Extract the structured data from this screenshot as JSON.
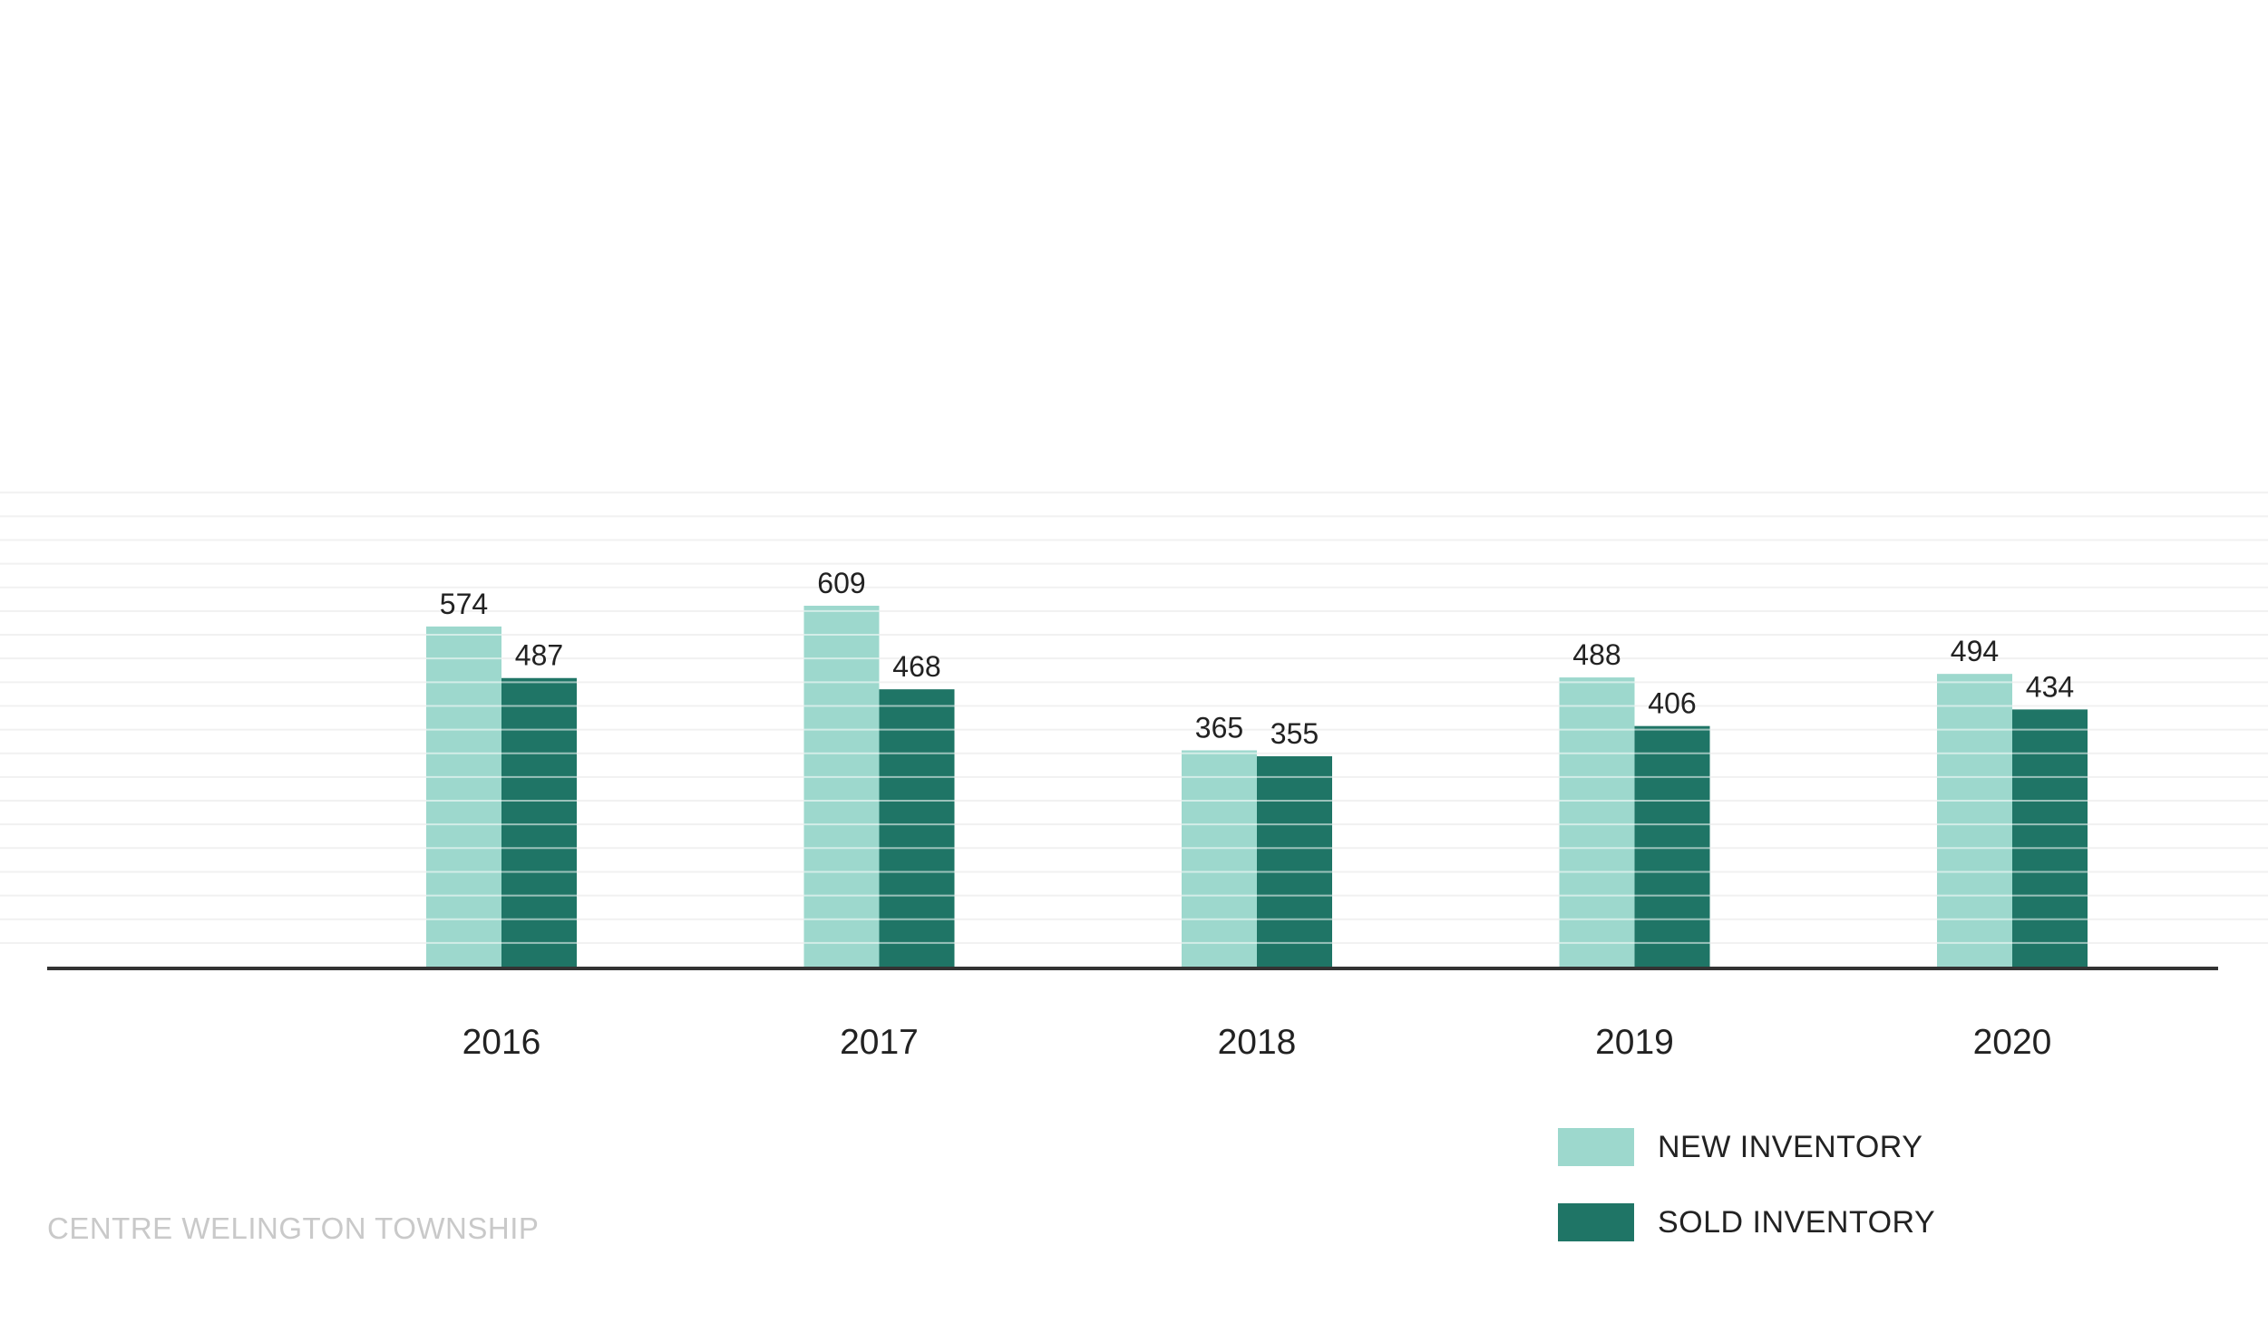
{
  "chart_data": {
    "type": "bar",
    "categories": [
      "2016",
      "2017",
      "2018",
      "2019",
      "2020"
    ],
    "series": [
      {
        "name": "NEW INVENTORY",
        "values": [
          574,
          609,
          365,
          488,
          494
        ],
        "color": "#9dd8cd"
      },
      {
        "name": "SOLD INVENTORY",
        "values": [
          487,
          468,
          355,
          406,
          434
        ],
        "color": "#1f7566"
      }
    ],
    "title": "",
    "xlabel": "",
    "ylabel": "",
    "ylim": [
      0,
      800
    ],
    "grid": true,
    "legend_position": "bottom-right"
  },
  "footer": {
    "text": "CENTRE WELINGTON TOWNSHIP"
  }
}
